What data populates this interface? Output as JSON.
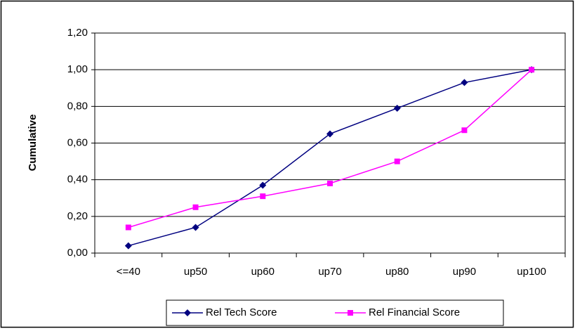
{
  "chart_data": {
    "type": "line",
    "y_label": "Cumulative",
    "categories": [
      "<=40",
      "up50",
      "up60",
      "up70",
      "up80",
      "up90",
      "up100"
    ],
    "series": [
      {
        "name": "Rel Tech Score",
        "color": "#000080",
        "marker": "diamond",
        "values": [
          0.04,
          0.14,
          0.37,
          0.65,
          0.79,
          0.93,
          1.0
        ]
      },
      {
        "name": "Rel Financial Score",
        "color": "#ff00ff",
        "marker": "square",
        "values": [
          0.14,
          0.25,
          0.31,
          0.38,
          0.5,
          0.67,
          1.0
        ]
      }
    ],
    "ylim": [
      0,
      1.2
    ],
    "yticks": [
      {
        "value": 0,
        "label": "0,00"
      },
      {
        "value": 0.2,
        "label": "0,20"
      },
      {
        "value": 0.4,
        "label": "0,40"
      },
      {
        "value": 0.6,
        "label": "0,60"
      },
      {
        "value": 0.8,
        "label": "0,80"
      },
      {
        "value": 1.0,
        "label": "1,00"
      },
      {
        "value": 1.2,
        "label": "1,20"
      }
    ],
    "grid": true,
    "legend": "bottom"
  }
}
